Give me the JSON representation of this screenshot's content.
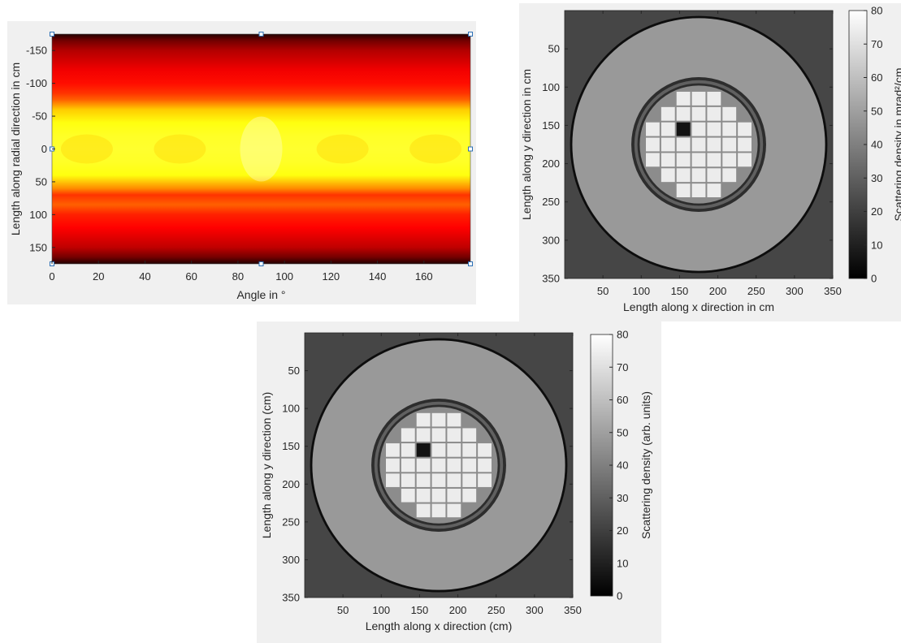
{
  "chart_data": [
    {
      "type": "heatmap",
      "colormap": "hot",
      "xlabel": "Angle in °",
      "ylabel": "Length along radial direction in cm",
      "xlim": [
        0,
        180
      ],
      "ylim": [
        -175,
        175
      ],
      "y_reversed": true,
      "xticks": [
        "0",
        "20",
        "40",
        "60",
        "80",
        "100",
        "120",
        "140",
        "160"
      ],
      "yticks": [
        "-150",
        "-100",
        "-50",
        "0",
        "50",
        "100",
        "150"
      ],
      "intensity_by_radial_position": {
        "r": [
          -175,
          -165,
          -150,
          -120,
          -100,
          -85,
          -75,
          -60,
          -40,
          -20,
          0,
          20,
          40,
          60,
          70,
          85,
          100,
          120,
          150,
          165,
          175
        ],
        "v": [
          0.05,
          0.18,
          0.28,
          0.38,
          0.42,
          0.48,
          0.55,
          0.72,
          0.82,
          0.85,
          0.86,
          0.85,
          0.82,
          0.62,
          0.48,
          0.55,
          0.45,
          0.4,
          0.3,
          0.18,
          0.05
        ]
      },
      "colors": {
        "low": "#000000",
        "mid": "#ff3300",
        "high": "#ffff66"
      }
    },
    {
      "type": "heatmap",
      "colormap": "gray",
      "xlabel": "Length along x direction in cm",
      "ylabel": "Length along y direction in cm",
      "colorbar_label": "Scattering density in mrad²/cm",
      "xlim": [
        0,
        350
      ],
      "ylim": [
        0,
        350
      ],
      "y_reversed": true,
      "xticks": [
        "50",
        "100",
        "150",
        "200",
        "250",
        "300",
        "350"
      ],
      "yticks": [
        "50",
        "100",
        "150",
        "200",
        "250",
        "300",
        "350"
      ],
      "colorbar_ticks": [
        "0",
        "10",
        "20",
        "30",
        "40",
        "50",
        "60",
        "70",
        "80"
      ],
      "clim": [
        0,
        80
      ]
    },
    {
      "type": "heatmap",
      "colormap": "gray",
      "xlabel": "Length along x direction (cm)",
      "ylabel": "Length along y direction (cm)",
      "colorbar_label": "Scattering density (arb. units)",
      "xlim": [
        0,
        350
      ],
      "ylim": [
        0,
        350
      ],
      "y_reversed": true,
      "xticks": [
        "50",
        "100",
        "150",
        "200",
        "250",
        "300",
        "350"
      ],
      "yticks": [
        "50",
        "100",
        "150",
        "200",
        "250",
        "300",
        "350"
      ],
      "colorbar_ticks": [
        "0",
        "10",
        "20",
        "30",
        "40",
        "50",
        "60",
        "70",
        "80"
      ],
      "clim": [
        0,
        80
      ]
    }
  ],
  "phantom": {
    "center": [
      175,
      175
    ],
    "outer_radius": 165,
    "outer_value": 48,
    "inner_ring_radius": 88,
    "inner_disc_value": 44,
    "background_value": 22,
    "ring_value": 14,
    "block_size": 20,
    "block_value": 74,
    "hole_value": 6,
    "block_rows": [
      {
        "y": 115,
        "x": [
          155,
          175,
          195
        ]
      },
      {
        "y": 135,
        "x": [
          135,
          155,
          175,
          195,
          215
        ]
      },
      {
        "y": 155,
        "x": [
          115,
          135,
          155,
          175,
          195,
          215,
          235
        ]
      },
      {
        "y": 175,
        "x": [
          115,
          135,
          155,
          175,
          195,
          215,
          235
        ]
      },
      {
        "y": 195,
        "x": [
          115,
          135,
          155,
          175,
          195,
          215,
          235
        ]
      },
      {
        "y": 215,
        "x": [
          135,
          155,
          175,
          195,
          215
        ]
      },
      {
        "y": 235,
        "x": [
          155,
          175,
          195
        ]
      }
    ],
    "holes": [
      [
        155,
        155
      ]
    ]
  }
}
